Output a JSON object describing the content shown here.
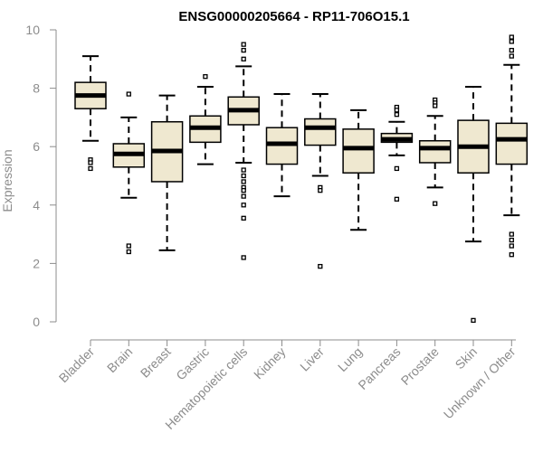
{
  "chart_data": {
    "type": "boxplot",
    "title": "ENSG00000205664 - RP11-706O15.1",
    "xlabel": "",
    "ylabel": "Expression",
    "ylim": [
      0,
      10
    ],
    "yticks": [
      0,
      2,
      4,
      6,
      8,
      10
    ],
    "grid": false,
    "colors": {
      "box_fill": "#efe8d0",
      "stroke": "#000000",
      "axis": "#8c8c8c"
    },
    "categories": [
      "Bladder",
      "Brain",
      "Breast",
      "Gastric",
      "Hematopoietic cells",
      "Kidney",
      "Liver",
      "Lung",
      "Pancreas",
      "Prostate",
      "Skin",
      "Unknown / Other"
    ],
    "boxes": [
      {
        "name": "Bladder",
        "whisker_low": 6.2,
        "q1": 7.3,
        "median": 7.75,
        "q3": 8.2,
        "whisker_high": 9.1,
        "outliers": [
          5.55,
          5.45,
          5.25
        ]
      },
      {
        "name": "Brain",
        "whisker_low": 4.25,
        "q1": 5.3,
        "median": 5.75,
        "q3": 6.1,
        "whisker_high": 7.0,
        "outliers": [
          7.8,
          2.6,
          2.4
        ]
      },
      {
        "name": "Breast",
        "whisker_low": 2.45,
        "q1": 4.8,
        "median": 5.85,
        "q3": 6.85,
        "whisker_high": 7.75,
        "outliers": []
      },
      {
        "name": "Gastric",
        "whisker_low": 5.4,
        "q1": 6.15,
        "median": 6.65,
        "q3": 7.05,
        "whisker_high": 8.05,
        "outliers": [
          8.4
        ]
      },
      {
        "name": "Hematopoietic cells",
        "whisker_low": 5.45,
        "q1": 6.75,
        "median": 7.25,
        "q3": 7.7,
        "whisker_high": 8.75,
        "outliers": [
          9.5,
          9.3,
          9.0,
          5.2,
          5.0,
          4.8,
          4.6,
          4.5,
          4.3,
          4.0,
          3.55,
          2.2
        ]
      },
      {
        "name": "Kidney",
        "whisker_low": 4.3,
        "q1": 5.4,
        "median": 6.1,
        "q3": 6.65,
        "whisker_high": 7.8,
        "outliers": []
      },
      {
        "name": "Liver",
        "whisker_low": 5.0,
        "q1": 6.05,
        "median": 6.65,
        "q3": 6.95,
        "whisker_high": 7.8,
        "outliers": [
          4.6,
          4.5,
          1.9
        ]
      },
      {
        "name": "Lung",
        "whisker_low": 3.15,
        "q1": 5.1,
        "median": 5.95,
        "q3": 6.6,
        "whisker_high": 7.25,
        "outliers": []
      },
      {
        "name": "Pancreas",
        "whisker_low": 5.7,
        "q1": 6.15,
        "median": 6.25,
        "q3": 6.45,
        "whisker_high": 6.85,
        "outliers": [
          7.35,
          7.25,
          7.1,
          5.25,
          4.2
        ]
      },
      {
        "name": "Prostate",
        "whisker_low": 4.6,
        "q1": 5.45,
        "median": 5.95,
        "q3": 6.2,
        "whisker_high": 7.05,
        "outliers": [
          7.6,
          7.5,
          7.4,
          4.05
        ]
      },
      {
        "name": "Skin",
        "whisker_low": 2.75,
        "q1": 5.1,
        "median": 6.0,
        "q3": 6.9,
        "whisker_high": 8.05,
        "outliers": [
          0.05
        ]
      },
      {
        "name": "Unknown / Other",
        "whisker_low": 3.65,
        "q1": 5.4,
        "median": 6.25,
        "q3": 6.8,
        "whisker_high": 8.8,
        "outliers": [
          9.75,
          9.6,
          9.3,
          9.1,
          3.0,
          2.8,
          2.6,
          2.3
        ]
      }
    ]
  }
}
